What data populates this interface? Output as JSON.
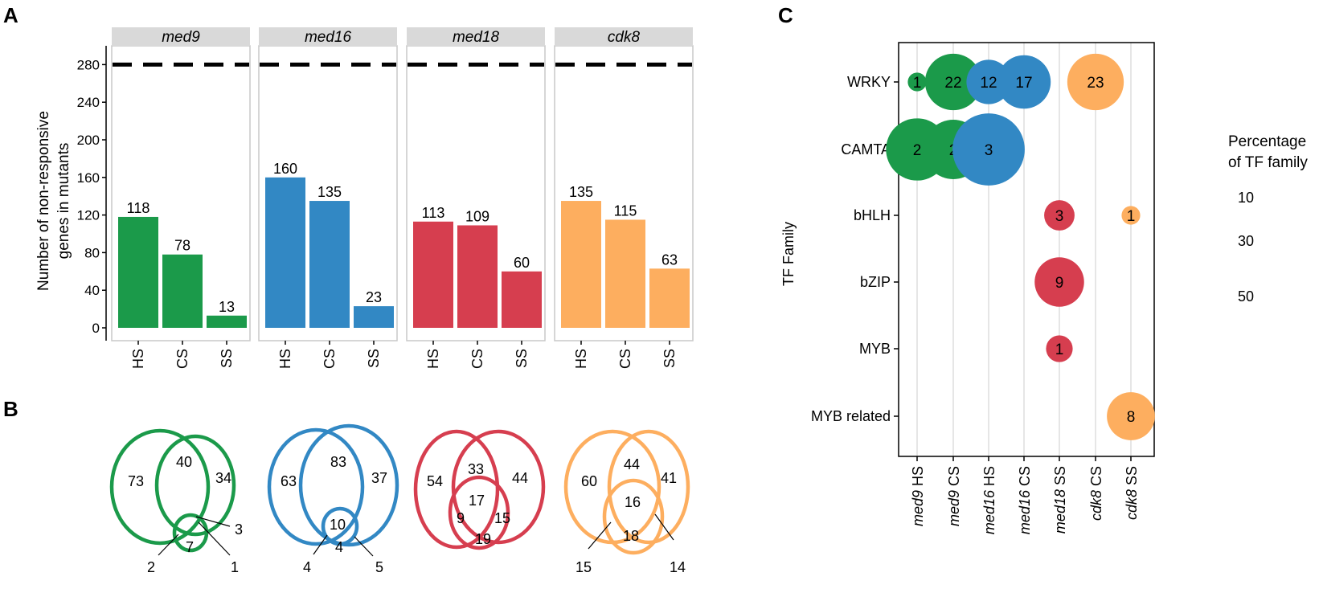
{
  "panel_labels": {
    "a": "A",
    "b": "B",
    "c": "C"
  },
  "colors": {
    "med9": "#1b9a4a",
    "med16": "#3288c4",
    "med18": "#d63e4f",
    "cdk8": "#fdae5f",
    "strip": "#d9d9d9",
    "frame": "#c8c8c8",
    "grid": "#e6e6e6"
  },
  "chart_data": [
    {
      "type": "bar",
      "ylabel_line1": "Number of non-responsive",
      "ylabel_line2": "genes in mutants",
      "ylim": [
        0,
        300
      ],
      "yticks": [
        0,
        40,
        80,
        120,
        160,
        200,
        240,
        280
      ],
      "reference_line": 280,
      "categories": [
        "HS",
        "CS",
        "SS"
      ],
      "series": [
        {
          "name": "med9",
          "values": [
            118,
            78,
            13
          ],
          "color_key": "med9"
        },
        {
          "name": "med16",
          "values": [
            160,
            135,
            23
          ],
          "color_key": "med16"
        },
        {
          "name": "med18",
          "values": [
            113,
            109,
            60
          ],
          "color_key": "med18"
        },
        {
          "name": "cdk8",
          "values": [
            135,
            115,
            63
          ],
          "color_key": "cdk8"
        }
      ]
    },
    {
      "type": "venn",
      "diagrams": [
        {
          "name": "med9",
          "color_key": "med9",
          "labels": [
            "73",
            "40",
            "34",
            "7",
            "3",
            "2",
            "1"
          ]
        },
        {
          "name": "med16",
          "color_key": "med16",
          "labels": [
            "63",
            "83",
            "37",
            "10",
            "4",
            "4",
            "5"
          ]
        },
        {
          "name": "med18",
          "color_key": "med18",
          "labels": [
            "54",
            "33",
            "44",
            "17",
            "9",
            "15",
            "19"
          ]
        },
        {
          "name": "cdk8",
          "color_key": "cdk8",
          "labels": [
            "60",
            "44",
            "41",
            "16",
            "18",
            "15",
            "14"
          ]
        }
      ]
    },
    {
      "type": "scatter",
      "ylabel": "TF Family",
      "x_italic": [
        "med9",
        "med9",
        "med16",
        "med16",
        "med18",
        "cdk8",
        "cdk8"
      ],
      "x_suffix": [
        "HS",
        "CS",
        "HS",
        "CS",
        "SS",
        "CS",
        "SS"
      ],
      "y": [
        "WRKY",
        "CAMTA",
        "bHLH",
        "bZIP",
        "MYB",
        "MYB related"
      ],
      "legend_title_line1": "Percentage",
      "legend_title_line2": "of TF family",
      "legend_values": [
        "10",
        "30",
        "50"
      ],
      "points": [
        {
          "x": 0,
          "y": 0,
          "label": "1",
          "percent": 4,
          "color_key": "med9"
        },
        {
          "x": 1,
          "y": 0,
          "label": "22",
          "percent": 45,
          "color_key": "med9"
        },
        {
          "x": 2,
          "y": 0,
          "label": "12",
          "percent": 27,
          "color_key": "med16"
        },
        {
          "x": 3,
          "y": 0,
          "label": "17",
          "percent": 40,
          "color_key": "med16"
        },
        {
          "x": 5,
          "y": 0,
          "label": "23",
          "percent": 45,
          "color_key": "cdk8"
        },
        {
          "x": 0,
          "y": 1,
          "label": "2",
          "percent": 55,
          "color_key": "med9"
        },
        {
          "x": 1,
          "y": 1,
          "label": "2",
          "percent": 50,
          "color_key": "med9"
        },
        {
          "x": 2,
          "y": 1,
          "label": "3",
          "percent": 75,
          "color_key": "med16"
        },
        {
          "x": 4,
          "y": 2,
          "label": "3",
          "percent": 12,
          "color_key": "med18"
        },
        {
          "x": 6,
          "y": 2,
          "label": "1",
          "percent": 4,
          "color_key": "cdk8"
        },
        {
          "x": 4,
          "y": 3,
          "label": "9",
          "percent": 34,
          "color_key": "med18"
        },
        {
          "x": 4,
          "y": 4,
          "label": "1",
          "percent": 9,
          "color_key": "med18"
        },
        {
          "x": 6,
          "y": 5,
          "label": "8",
          "percent": 32,
          "color_key": "cdk8"
        }
      ]
    }
  ]
}
